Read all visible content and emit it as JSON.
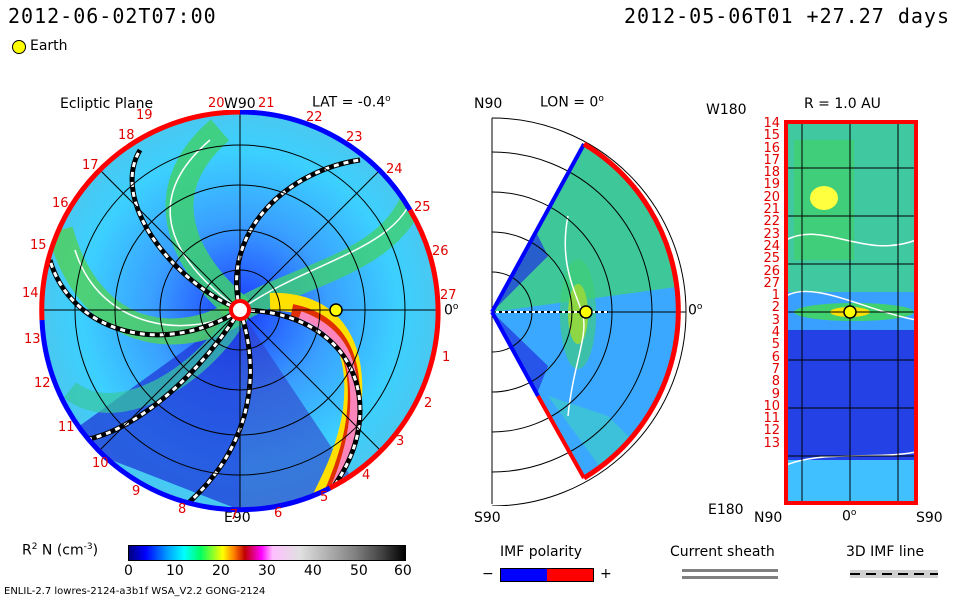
{
  "header": {
    "left_timestamp": "2012-06-02T07:00",
    "right_timestamp": "2012-05-06T01 +27.27 days",
    "earth_legend": "Earth"
  },
  "ecliptic_panel": {
    "title": "Ecliptic Plane",
    "top_label": "W90",
    "bottom_label": "E90",
    "right_label": "0",
    "lat_label": "LAT = -0.4",
    "rotation_numbers": [
      "19",
      "20",
      "21",
      "22",
      "23",
      "24",
      "25",
      "26",
      "27",
      "1",
      "2",
      "3",
      "4",
      "5",
      "6",
      "7",
      "8",
      "9",
      "10",
      "11",
      "12",
      "13",
      "14",
      "15",
      "16",
      "17",
      "18"
    ]
  },
  "meridional_panel": {
    "top_label": "N90",
    "bottom_label": "S90",
    "right_label": "0",
    "lon_label": "LON = 0"
  },
  "sphere_panel": {
    "title": "R = 1.0 AU",
    "top_left_label": "W180",
    "bottom_left_label": "E180",
    "x_labels": [
      "N90",
      "0",
      "S90"
    ],
    "y_labels": [
      "14",
      "15",
      "16",
      "17",
      "18",
      "19",
      "20",
      "21",
      "22",
      "23",
      "24",
      "25",
      "26",
      "27",
      "1",
      "2",
      "3",
      "4",
      "5",
      "6",
      "7",
      "8",
      "9",
      "10",
      "11",
      "12",
      "13"
    ]
  },
  "colorbar": {
    "label": "R",
    "label_sup": "2",
    "label_rest": " N (cm",
    "label_unit_sup": "-3",
    "label_close": ")",
    "ticks": [
      "0",
      "10",
      "20",
      "30",
      "40",
      "50",
      "60"
    ]
  },
  "legends": {
    "imf_polarity": "IMF polarity",
    "imf_minus": "−",
    "imf_plus": "+",
    "current_sheath": "Current sheath",
    "imf_line": "3D IMF line"
  },
  "footer": {
    "model_info": "ENLIL-2.7 lowres-2124-a3b1f WSA_V2.2 GONG-2124"
  },
  "colors": {
    "positive_polarity": "#ff0000",
    "negative_polarity": "#0000ff",
    "earth_marker": "#ffff00"
  }
}
